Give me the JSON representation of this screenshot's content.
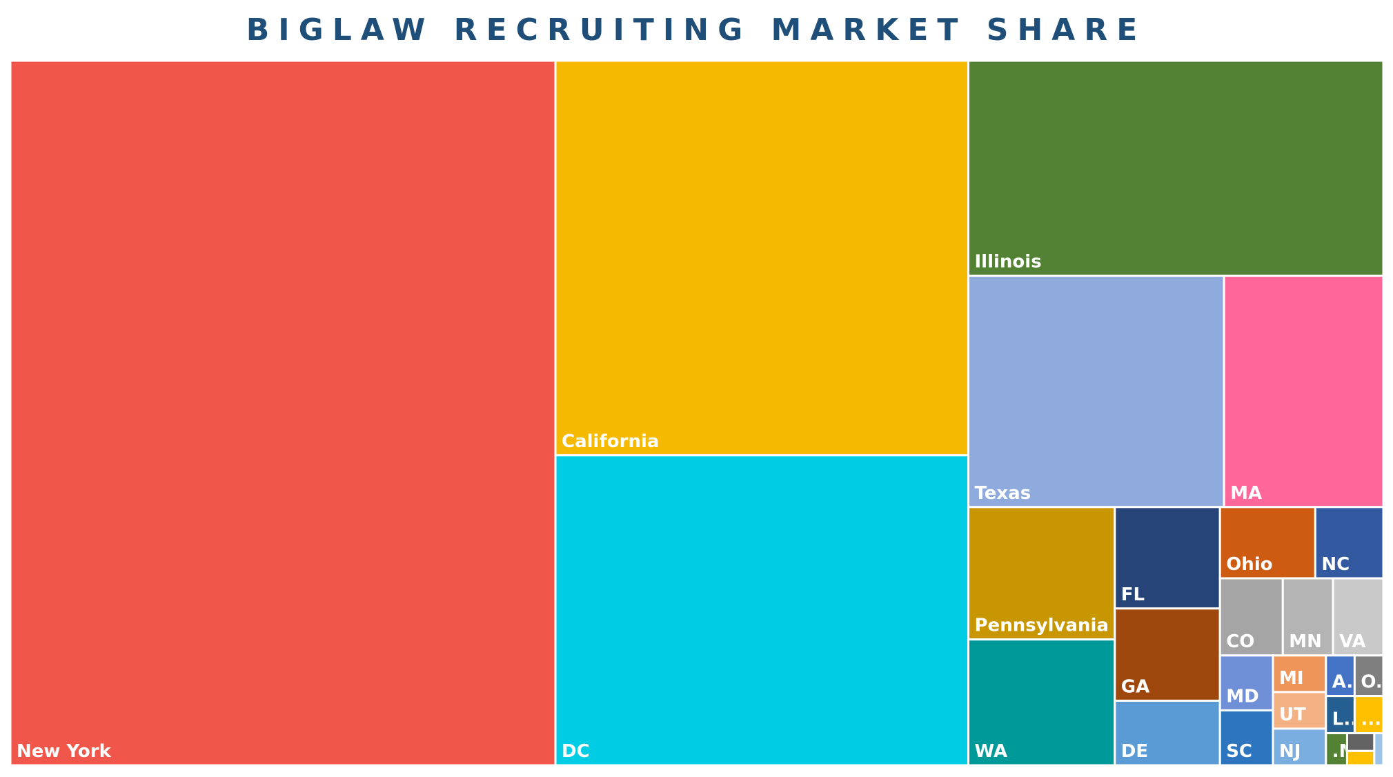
{
  "chart_data": {
    "type": "treemap",
    "title": "BIGLAW RECRUITING MARKET SHARE",
    "categories": [
      "New York",
      "California",
      "DC",
      "Illinois",
      "Texas",
      "MA",
      "Pennsylvania",
      "WA",
      "FL",
      "GA",
      "DE",
      "Ohio",
      "NC",
      "CO",
      "MN",
      "VA",
      "MD",
      "SC",
      "MI",
      "UT",
      "NJ",
      "A..",
      "O..",
      "L..",
      "...",
      ".M",
      null,
      null,
      null
    ],
    "values": [
      39.6,
      16.8,
      13.2,
      9.2,
      6.1,
      3.8,
      2.0,
      1.9,
      1.1,
      1.0,
      0.7,
      0.7,
      0.5,
      0.5,
      0.4,
      0.4,
      0.3,
      0.3,
      0.2,
      0.2,
      0.2,
      0.12,
      0.12,
      0.11,
      0.11,
      0.07,
      0.05,
      0.04,
      0.03
    ],
    "colors": [
      "#f0564a",
      "#f4b900",
      "#00cde3",
      "#548235",
      "#8faadc",
      "#ff6699",
      "#c89600",
      "#009999",
      "#264478",
      "#9e480e",
      "#5b9bd5",
      "#cd5b12",
      "#335aa1",
      "#a5a5a5",
      "#b4b4b4",
      "#c9c9c9",
      "#6f8fd6",
      "#2e75c0",
      "#f0955a",
      "#f4b183",
      "#7aaee0",
      "#4472c4",
      "#7f7f7f",
      "#255e91",
      "#ffc000",
      "#548235",
      "#636363",
      "#ffc000",
      "#9dc3e6"
    ]
  }
}
